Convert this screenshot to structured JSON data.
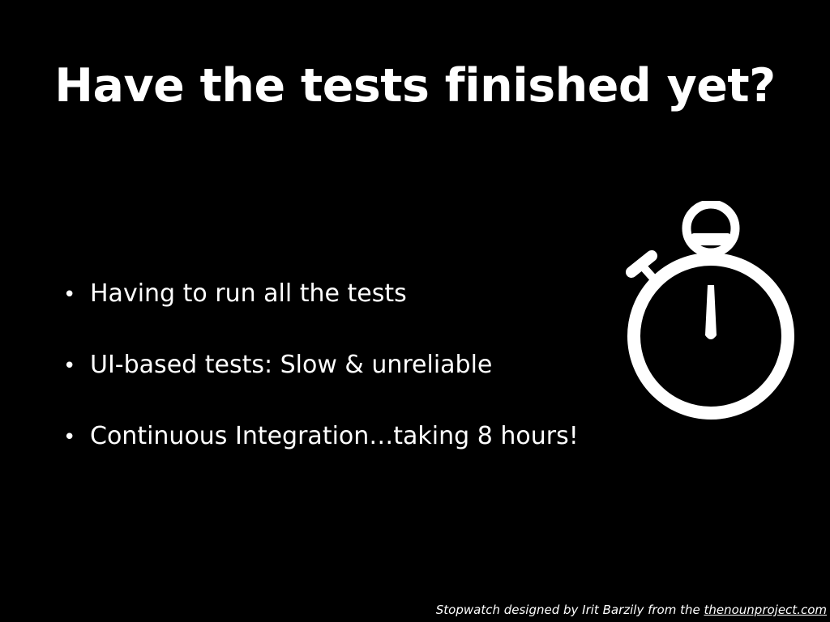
{
  "slide": {
    "title": "Have the tests finished yet?",
    "bullets": [
      "Having to run all the tests",
      "UI-based tests: Slow & unreliable",
      "Continuous Integration…taking 8 hours!"
    ],
    "bullet_glyph": "•",
    "icon": "stopwatch-icon",
    "credit": {
      "prefix": "Stopwatch designed by Irit Barzily from the ",
      "link_text": "thenounproject.com"
    },
    "colors": {
      "background": "#000000",
      "text": "#ffffff"
    }
  }
}
